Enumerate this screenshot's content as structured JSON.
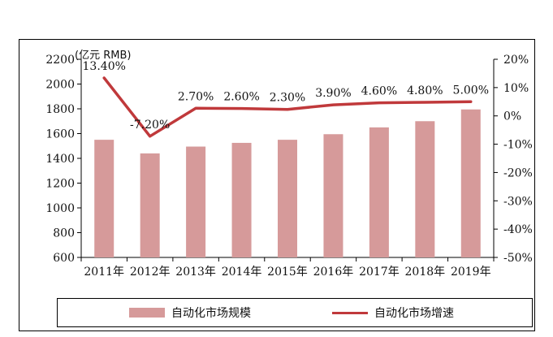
{
  "chart_data": {
    "type": "bar+line",
    "unit_label": "(亿元 RMB)",
    "categories": [
      "2011年",
      "2012年",
      "2013年",
      "2014年",
      "2015年",
      "2016年",
      "2017年",
      "2018年",
      "2019年"
    ],
    "series": [
      {
        "name": "自动化市场规模",
        "type": "bar",
        "axis": "left",
        "values": [
          1550,
          1440,
          1495,
          1525,
          1550,
          1595,
          1650,
          1700,
          1795
        ],
        "color": "#d69a9a"
      },
      {
        "name": "自动化市场增速",
        "type": "line",
        "axis": "right",
        "values": [
          13.4,
          -7.2,
          2.7,
          2.6,
          2.3,
          3.9,
          4.6,
          4.8,
          5.0
        ],
        "labels": [
          "13.40%",
          "-7.20%",
          "2.70%",
          "2.60%",
          "2.30%",
          "3.90%",
          "4.60%",
          "4.80%",
          "5.00%"
        ],
        "color": "#c0393b"
      }
    ],
    "y_left": {
      "ylim": [
        600,
        2200
      ],
      "ticks": [
        "600",
        "800",
        "1000",
        "1200",
        "1400",
        "1600",
        "1800",
        "2000",
        "2200"
      ]
    },
    "y_right": {
      "ylim": [
        -50,
        20
      ],
      "ticks": [
        "-50%",
        "-40%",
        "-30%",
        "-20%",
        "-10%",
        "0%",
        "10%",
        "20%"
      ]
    },
    "grid": false,
    "legend": "bottom"
  }
}
